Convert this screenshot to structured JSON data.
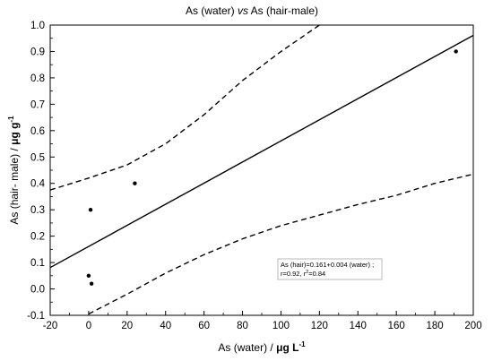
{
  "chart_data": {
    "type": "scatter",
    "title_parts": [
      "As (water) ",
      "vs",
      " As (hair-male)"
    ],
    "xlabel_parts": [
      "As (water) / ",
      "μ",
      "g L",
      "-1"
    ],
    "ylabel_parts": [
      "As (hair- male) / ",
      "μ",
      "g g",
      "-1"
    ],
    "xlim": [
      -20,
      200
    ],
    "ylim": [
      -0.1,
      1.0
    ],
    "x_ticks": [
      "-20",
      "0",
      "20",
      "40",
      "60",
      "80",
      "100",
      "120",
      "140",
      "160",
      "180",
      "200"
    ],
    "y_ticks": [
      "-0.1",
      "0.0",
      "0.1",
      "0.2",
      "0.3",
      "0.4",
      "0.5",
      "0.6",
      "0.7",
      "0.8",
      "0.9",
      "1.0"
    ],
    "grid": false,
    "points": [
      {
        "x": 0,
        "y": 0.05
      },
      {
        "x": 1,
        "y": 0.3
      },
      {
        "x": 1.5,
        "y": 0.02
      },
      {
        "x": 24,
        "y": 0.4
      },
      {
        "x": 191,
        "y": 0.9
      }
    ],
    "fit_line": {
      "intercept": 0.161,
      "slope": 0.004
    },
    "confidence_band": {
      "upper": [
        [
          -20,
          0.375
        ],
        [
          0,
          0.42
        ],
        [
          20,
          0.47
        ],
        [
          40,
          0.55
        ],
        [
          60,
          0.66
        ],
        [
          80,
          0.79
        ],
        [
          100,
          0.9
        ],
        [
          120,
          1.0
        ]
      ],
      "lower": [
        [
          0,
          -0.095
        ],
        [
          20,
          -0.02
        ],
        [
          40,
          0.06
        ],
        [
          60,
          0.13
        ],
        [
          80,
          0.19
        ],
        [
          100,
          0.24
        ],
        [
          120,
          0.28
        ],
        [
          140,
          0.32
        ],
        [
          160,
          0.355
        ],
        [
          180,
          0.4
        ],
        [
          200,
          0.435
        ]
      ]
    },
    "annotation": {
      "line1": "As (hair)=0.161+0.004 (water) ;",
      "line2_prefix": "r=0.92, r",
      "line2_sup": "2",
      "line2_suffix": "=0.84"
    }
  }
}
